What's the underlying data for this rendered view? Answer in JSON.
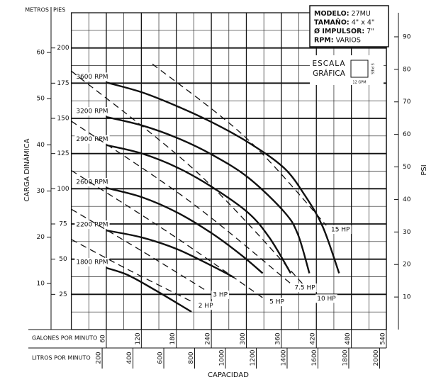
{
  "chart_data": {
    "type": "line",
    "x_label": "CAPACIDAD",
    "x_axis_name": "GALONES POR MINUTO",
    "x2_axis_name": "LITROS POR MINUTO",
    "y_label": "CARGA DINÁMICA",
    "y_axis_name": "PIES",
    "y3_axis_name": "METROS",
    "y2_label": "PSI",
    "xlim": [
      0,
      540
    ],
    "xticks": [
      60,
      120,
      180,
      240,
      300,
      360,
      420,
      480,
      540
    ],
    "x2lim": [
      0,
      2044
    ],
    "x2ticks": [
      200,
      400,
      600,
      800,
      1000,
      1200,
      1400,
      1600,
      1800,
      2000
    ],
    "ylim": [
      0,
      225
    ],
    "yticks": [
      25,
      50,
      75,
      100,
      125,
      150,
      175,
      200
    ],
    "y3lim": [
      0,
      68.6
    ],
    "y3ticks": [
      10,
      20,
      30,
      40,
      50,
      60
    ],
    "y2lim": [
      0,
      97.4
    ],
    "y2ticks": [
      10,
      20,
      30,
      40,
      50,
      60,
      70,
      80,
      90
    ],
    "grid": true,
    "series": [
      {
        "name": "3600 RPM",
        "color": "#111111",
        "style": "solid",
        "x": [
          60,
          121,
          182,
          242,
          303,
          364,
          400,
          431,
          459
        ],
        "values": [
          175.5,
          168.5,
          158.5,
          147,
          133,
          115,
          95.5,
          73,
          40
        ]
      },
      {
        "name": "3200 RPM",
        "color": "#111111",
        "style": "solid",
        "x": [
          60,
          121,
          182,
          242,
          303,
          364,
          388,
          408
        ],
        "values": [
          151,
          145,
          136,
          124,
          108,
          84,
          68,
          40
        ]
      },
      {
        "name": "2900 RPM",
        "color": "#111111",
        "style": "solid",
        "x": [
          60,
          121,
          182,
          242,
          303,
          340,
          376
        ],
        "values": [
          131,
          125,
          115,
          101,
          83,
          65,
          40
        ]
      },
      {
        "name": "2600 RPM",
        "color": "#111111",
        "style": "solid",
        "x": [
          60,
          121,
          182,
          242,
          291,
          328
        ],
        "values": [
          100.6,
          94,
          83,
          68,
          53,
          40
        ]
      },
      {
        "name": "2200 RPM",
        "color": "#111111",
        "style": "solid",
        "x": [
          60,
          121,
          182,
          242,
          279
        ],
        "values": [
          70.4,
          65.4,
          57,
          45,
          37
        ]
      },
      {
        "name": "1800 RPM",
        "color": "#111111",
        "style": "solid",
        "x": [
          60,
          97,
          145,
          206
        ],
        "values": [
          43.8,
          38.7,
          27.7,
          12.6
        ]
      },
      {
        "name": "15 HP",
        "color": "#111111",
        "style": "dashed",
        "x": [
          139,
          300,
          437
        ],
        "values": [
          188.6,
          136,
          74
        ]
      },
      {
        "name": "10 HP",
        "color": "#111111",
        "style": "dashed",
        "x": [
          0,
          220,
          413
        ],
        "values": [
          183.6,
          110,
          25
        ]
      },
      {
        "name": "7.5 HP",
        "color": "#111111",
        "style": "dashed",
        "x": [
          0,
          200,
          376
        ],
        "values": [
          148,
          92,
          32.7
        ]
      },
      {
        "name": "5 HP",
        "color": "#111111",
        "style": "dashed",
        "x": [
          0,
          170,
          328
        ],
        "values": [
          113,
          68,
          22.6
        ]
      },
      {
        "name": "3 HP",
        "color": "#111111",
        "style": "dashed",
        "x": [
          0,
          120,
          231
        ],
        "values": [
          85.5,
          56,
          27.7
        ]
      },
      {
        "name": "2 HP",
        "color": "#111111",
        "style": "dashed",
        "x": [
          0,
          100,
          206
        ],
        "values": [
          64,
          42,
          20
        ]
      }
    ]
  },
  "info": {
    "rows": [
      {
        "label": "MODELO:",
        "value": "27MU"
      },
      {
        "label": "TAMAÑO:",
        "value": "4\" x 4\""
      },
      {
        "label": "Ø IMPULSOR:",
        "value": "7\""
      },
      {
        "label": "RPM:",
        "value": "VARIOS"
      }
    ]
  },
  "scale_box": {
    "line1": "ESCALA",
    "line2": "GRÁFICA",
    "height": "5 PIES",
    "width": "12 GPM"
  }
}
